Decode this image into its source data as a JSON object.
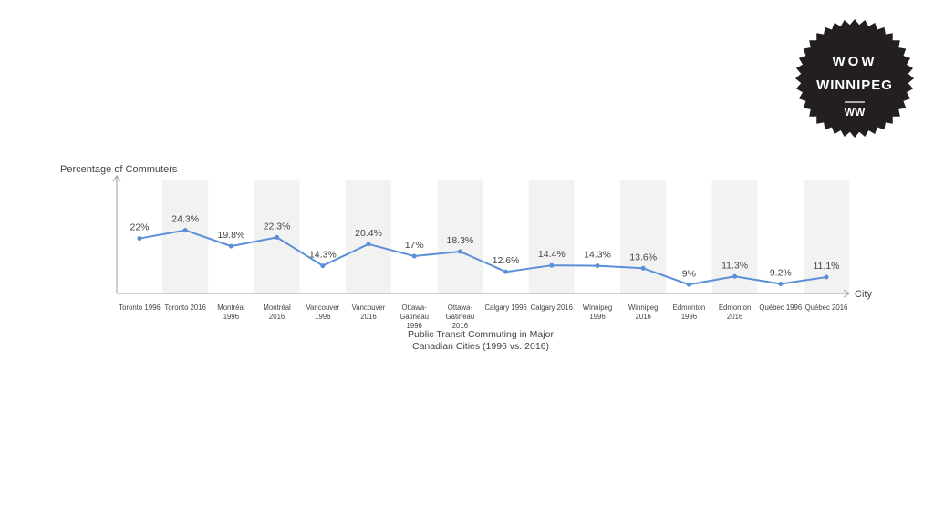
{
  "badge": {
    "line1": "WOW",
    "line2": "WINNIPEG",
    "mark": "WW",
    "bg_color": "#231f20",
    "text_color": "#ffffff"
  },
  "chart_data": {
    "type": "line",
    "title": "Public Transit Commuting in Major Canadian Cities (1996 vs. 2016)",
    "title_lines": [
      "Public Transit Commuting in Major",
      "Canadian Cities (1996 vs. 2016)"
    ],
    "xlabel": "City",
    "ylabel": "Percentage of Commuters",
    "categories": [
      "Toronto 1996",
      "Toronto 2016",
      "Montréal 1996",
      "Montréal 2016",
      "Vancouver 1996",
      "Vancouver 2016",
      "Ottawa-Gatineau 1996",
      "Ottawa-Gatineau 2016",
      "Calgary 1996",
      "Calgary 2016",
      "Winnipeg 1996",
      "Winnipeg 2016",
      "Edmonton 1996",
      "Edmonton 2016",
      "Québec 1996",
      "Québec 2016"
    ],
    "category_label_lines": [
      [
        "Toronto 1996"
      ],
      [
        "Toronto 2016"
      ],
      [
        "Montréal",
        "1996"
      ],
      [
        "Montréal",
        "2016"
      ],
      [
        "Vancouver",
        "1996"
      ],
      [
        "Vancouver",
        "2016"
      ],
      [
        "Ottawa-",
        "Gatineau",
        "1996"
      ],
      [
        "Ottawa-",
        "Gatineau",
        "2016"
      ],
      [
        "Calgary 1996"
      ],
      [
        "Calgary 2016"
      ],
      [
        "Winnipeg",
        "1996"
      ],
      [
        "Winnipeg",
        "2016"
      ],
      [
        "Edmonton",
        "1996"
      ],
      [
        "Edmonton",
        "2016"
      ],
      [
        "Québec 1996"
      ],
      [
        "Québec 2016"
      ]
    ],
    "values": [
      22,
      24.3,
      19.8,
      22.3,
      14.3,
      20.4,
      17,
      18.3,
      12.6,
      14.4,
      14.3,
      13.6,
      9,
      11.3,
      9.2,
      11.1
    ],
    "data_labels": [
      "22%",
      "24.3%",
      "19.8%",
      "22.3%",
      "14.3%",
      "20.4%",
      "17%",
      "18.3%",
      "12.6%",
      "14.4%",
      "14.3%",
      "13.6%",
      "9%",
      "11.3%",
      "9.2%",
      "11.1%"
    ],
    "line_color": "#5b8fd6",
    "band_color": "#f2f2f2",
    "axis_color": "#9e9e9e",
    "text_color": "#444444",
    "grid": false,
    "legend": "none"
  }
}
